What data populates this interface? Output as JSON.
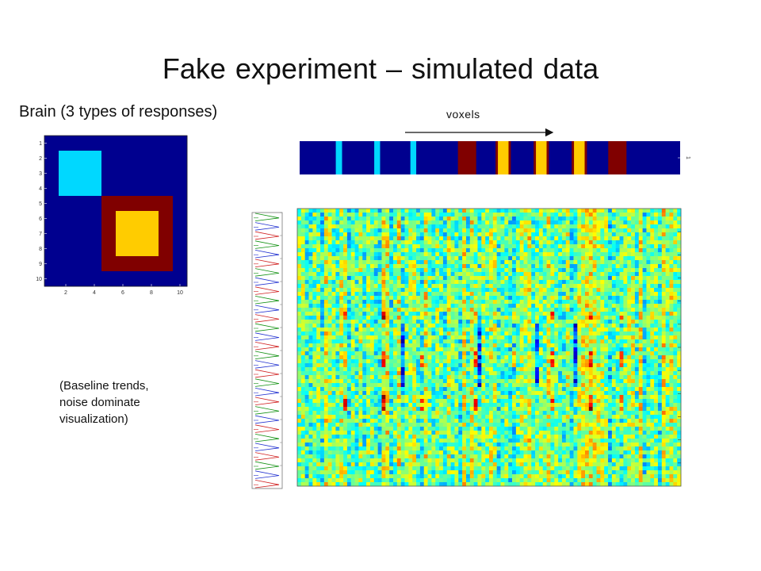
{
  "slide": {
    "title": "Fake experiment – simulated  data",
    "subtitle": "Brain (3 types of responses)",
    "caption_lines": [
      "(Baseline trends,",
      "noise dominate",
      "visualization)"
    ],
    "voxels_label": "voxels"
  },
  "brain_map": {
    "y_ticks": [
      "1",
      "2",
      "3",
      "4",
      "5",
      "6",
      "7",
      "8",
      "9",
      "10"
    ],
    "x_ticks": [
      "2",
      "4",
      "6",
      "8",
      "10"
    ],
    "grid": [
      [
        0,
        0,
        0,
        0,
        0,
        0,
        0,
        0,
        0,
        0
      ],
      [
        0,
        1,
        1,
        1,
        0,
        0,
        0,
        0,
        0,
        0
      ],
      [
        0,
        1,
        1,
        1,
        0,
        0,
        0,
        0,
        0,
        0
      ],
      [
        0,
        1,
        1,
        1,
        0,
        0,
        0,
        0,
        0,
        0
      ],
      [
        0,
        0,
        0,
        0,
        3,
        3,
        3,
        3,
        3,
        0
      ],
      [
        0,
        0,
        0,
        0,
        3,
        2,
        2,
        2,
        3,
        0
      ],
      [
        0,
        0,
        0,
        0,
        3,
        2,
        2,
        2,
        3,
        0
      ],
      [
        0,
        0,
        0,
        0,
        3,
        2,
        2,
        2,
        3,
        0
      ],
      [
        0,
        0,
        0,
        0,
        3,
        3,
        3,
        3,
        3,
        0
      ],
      [
        0,
        0,
        0,
        0,
        0,
        0,
        0,
        0,
        0,
        0
      ]
    ]
  },
  "voxel_strip": {
    "y_tick": "1",
    "stripes": [
      {
        "pos": 0.11,
        "w": 0.03,
        "type": "cyan"
      },
      {
        "pos": 0.21,
        "w": 0.028,
        "type": "cyan"
      },
      {
        "pos": 0.305,
        "w": 0.028,
        "type": "cyan"
      },
      {
        "pos": 0.44,
        "w": 0.048,
        "type": "darkred"
      },
      {
        "pos": 0.535,
        "w": 0.04,
        "type": "ring"
      },
      {
        "pos": 0.635,
        "w": 0.04,
        "type": "ring"
      },
      {
        "pos": 0.735,
        "w": 0.04,
        "type": "ring"
      },
      {
        "pos": 0.835,
        "w": 0.048,
        "type": "darkred"
      }
    ]
  },
  "colors": {
    "jet_dark_blue": "#00008f",
    "jet_cyan": "#00d8ff",
    "jet_yellow": "#ffcc00",
    "jet_dark_red": "#800000",
    "trace_blue": "#2030d0",
    "trace_red": "#d02020",
    "trace_green": "#109010"
  }
}
